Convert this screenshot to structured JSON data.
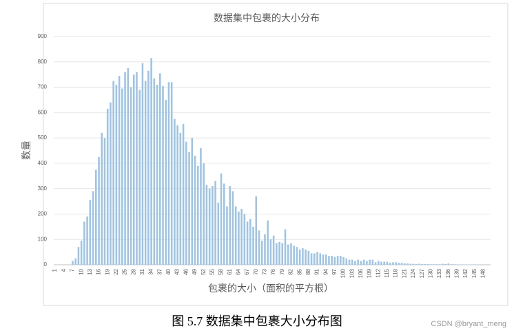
{
  "chart_data": {
    "type": "bar",
    "title": "数据集中包裹的大小分布",
    "y_label": "数量",
    "x_label": "包裹的大小（面积的平方根）",
    "caption": "图 5.7  数据集中包裹大小分布图",
    "watermark": "CSDN @bryant_meng",
    "color": "#9dc3e6",
    "grid": true,
    "ylim": [
      0,
      900
    ],
    "yticks": [
      0,
      100,
      200,
      300,
      400,
      500,
      600,
      700,
      800,
      900
    ],
    "categories": [
      "1",
      null,
      null,
      "4",
      null,
      null,
      "7",
      null,
      null,
      "10",
      null,
      null,
      "13",
      null,
      null,
      "16",
      null,
      null,
      "19",
      null,
      null,
      "22",
      null,
      null,
      "25",
      null,
      null,
      "28",
      null,
      null,
      "31",
      null,
      null,
      "34",
      null,
      null,
      "37",
      null,
      null,
      "40",
      null,
      null,
      "43",
      null,
      null,
      "46",
      null,
      null,
      "49",
      null,
      null,
      "52",
      null,
      null,
      "55",
      null,
      null,
      "58",
      null,
      null,
      "61",
      null,
      null,
      "64",
      null,
      null,
      "67",
      null,
      null,
      "70",
      null,
      null,
      "73",
      null,
      null,
      "76",
      null,
      null,
      "79",
      null,
      null,
      "82",
      null,
      null,
      "85",
      null,
      null,
      "88",
      null,
      null,
      "91",
      null,
      null,
      "94",
      null,
      null,
      "97",
      null,
      null,
      "100",
      null,
      null,
      "103",
      null,
      null,
      "106",
      null,
      null,
      "109",
      null,
      null,
      "112",
      null,
      null,
      "115",
      null,
      null,
      "118",
      null,
      null,
      "121",
      null,
      null,
      "124",
      null,
      null,
      "127",
      null,
      null,
      "130",
      null,
      null,
      "133",
      null,
      null,
      "136",
      null,
      null,
      "139",
      null,
      null,
      "142",
      null,
      null,
      "145",
      null,
      null,
      "148",
      null,
      null
    ],
    "values": [
      0,
      0,
      0,
      0,
      0,
      0,
      15,
      25,
      70,
      95,
      170,
      190,
      255,
      290,
      375,
      425,
      520,
      500,
      615,
      640,
      725,
      710,
      745,
      695,
      760,
      775,
      700,
      750,
      760,
      690,
      795,
      725,
      765,
      815,
      735,
      710,
      755,
      705,
      650,
      720,
      720,
      575,
      550,
      520,
      555,
      485,
      445,
      500,
      430,
      390,
      460,
      400,
      315,
      300,
      310,
      330,
      245,
      360,
      320,
      230,
      310,
      290,
      230,
      210,
      220,
      200,
      170,
      180,
      150,
      270,
      135,
      95,
      120,
      175,
      100,
      115,
      85,
      90,
      85,
      140,
      80,
      85,
      75,
      70,
      60,
      65,
      60,
      55,
      45,
      45,
      50,
      45,
      40,
      40,
      35,
      35,
      30,
      35,
      35,
      30,
      25,
      20,
      20,
      15,
      20,
      15,
      20,
      15,
      20,
      20,
      10,
      15,
      12,
      12,
      12,
      8,
      10,
      10,
      8,
      8,
      6,
      5,
      4,
      4,
      3,
      4,
      3,
      3,
      3,
      2,
      2,
      2,
      2,
      4,
      3,
      5,
      2,
      2,
      1,
      1,
      1,
      1,
      1,
      1,
      1,
      1,
      1,
      1,
      0,
      0
    ]
  }
}
